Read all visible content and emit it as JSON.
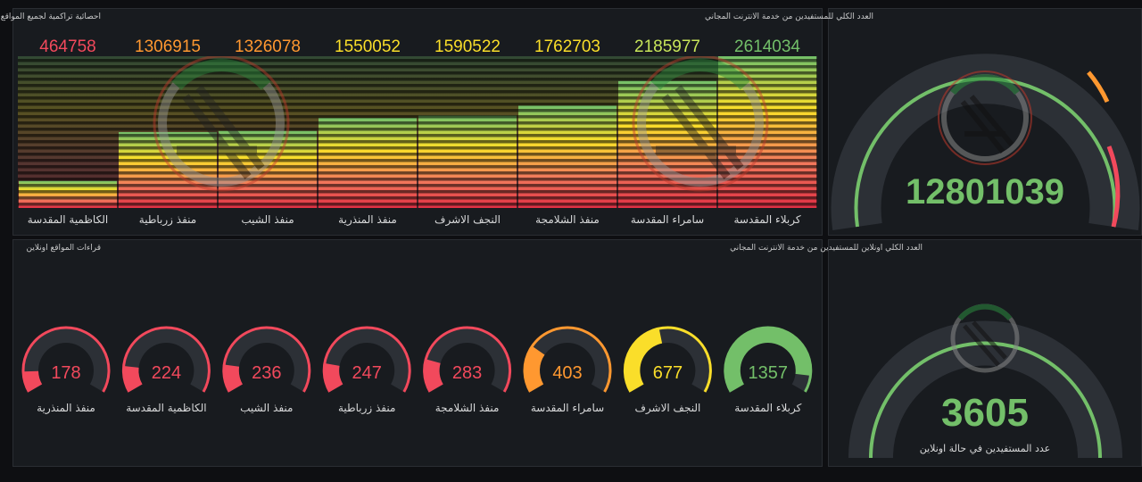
{
  "top_left": {
    "title": "احصائية تراكمية لجميع المواقع",
    "sites": [
      {
        "name": "الكاظمية المقدسة",
        "value": "464758",
        "color": "#f2495c"
      },
      {
        "name": "منفذ زرباطية",
        "value": "1306915",
        "color": "#ff9830"
      },
      {
        "name": "منفذ الشيب",
        "value": "1326078",
        "color": "#ff9830"
      },
      {
        "name": "منفذ المنذرية",
        "value": "1550052",
        "color": "#fade2a"
      },
      {
        "name": "النجف الاشرف",
        "value": "1590522",
        "color": "#fade2a"
      },
      {
        "name": "منفذ الشلامجة",
        "value": "1762703",
        "color": "#fade2a"
      },
      {
        "name": "سامراء المقدسة",
        "value": "2185977",
        "color": "#c8e65a"
      },
      {
        "name": "كربلاء المقدسة",
        "value": "2614034",
        "color": "#73bf69"
      }
    ]
  },
  "top_right": {
    "title": "العدد الكلي للمستفيدين من خدمة الانترنت المجاني",
    "value": "12801039"
  },
  "bottom_left": {
    "title": "قراءات المواقع اونلاين",
    "sites": [
      {
        "name": "منفذ المنذرية",
        "value": "178",
        "color": "#f2495c"
      },
      {
        "name": "الكاظمية المقدسة",
        "value": "224",
        "color": "#f2495c"
      },
      {
        "name": "منفذ الشيب",
        "value": "236",
        "color": "#f2495c"
      },
      {
        "name": "منفذ زرباطية",
        "value": "247",
        "color": "#f2495c"
      },
      {
        "name": "منفذ الشلامجة",
        "value": "283",
        "color": "#f2495c"
      },
      {
        "name": "سامراء المقدسة",
        "value": "403",
        "color": "#ff9830"
      },
      {
        "name": "النجف الاشرف",
        "value": "677",
        "color": "#fade2a"
      },
      {
        "name": "كربلاء المقدسة",
        "value": "1357",
        "color": "#73bf69"
      }
    ]
  },
  "bottom_right": {
    "title": "العدد الكلي اونلاين للمستفيدين من خدمة الانترنت المجاني",
    "value": "3605",
    "subtitle": "عدد المستفيدين في حالة اونلاين"
  },
  "colors": {
    "green": "#73bf69",
    "yellow": "#fade2a",
    "orange": "#ff9830",
    "red": "#f2495c",
    "track": "#2c3036",
    "panel": "#181b1f"
  }
}
